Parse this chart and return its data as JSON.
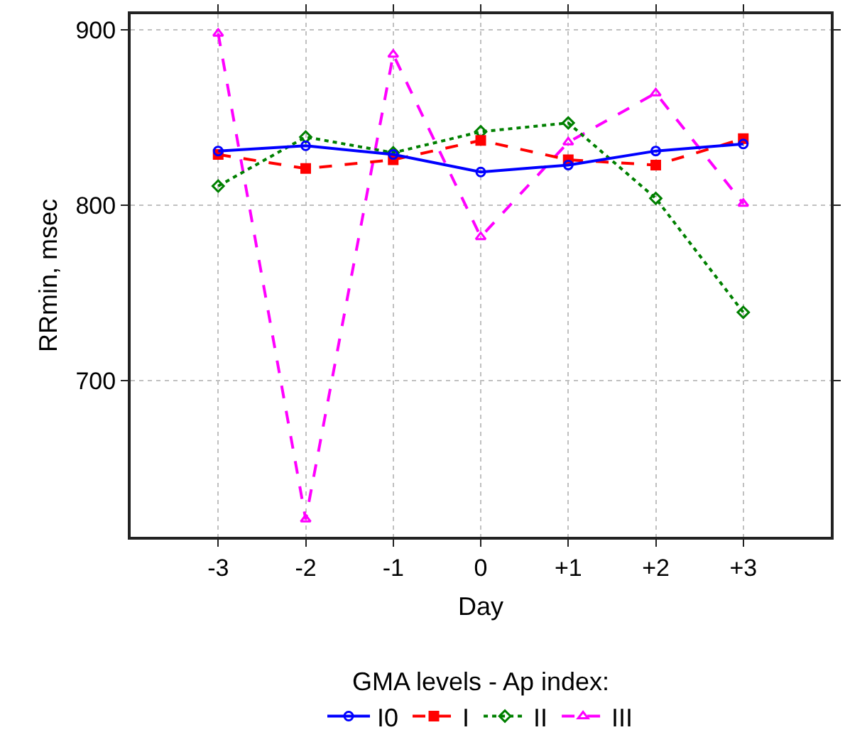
{
  "chart_data": {
    "type": "line",
    "xlabel": "Day",
    "ylabel": "RRmin, msec",
    "legend_title": "GMA levels - Ap index:",
    "x": [
      -3,
      -2,
      -1,
      0,
      1,
      2,
      3
    ],
    "xlim": [
      -4,
      4
    ],
    "xticks": [
      -3,
      -2,
      -1,
      0,
      {
        "value": 1,
        "label": "+1"
      },
      {
        "value": 2,
        "label": "+2"
      },
      {
        "value": 3,
        "label": "+3"
      }
    ],
    "ylim": [
      611,
      909
    ],
    "yticks": [
      700,
      800,
      900
    ],
    "grid": true,
    "legend": "bottom",
    "series": [
      {
        "name": "I0",
        "color": "#0000ff",
        "marker": "circle",
        "line_style": "solid",
        "values": [
          831,
          834,
          829,
          819,
          823,
          831,
          835
        ]
      },
      {
        "name": "I",
        "color": "#ff0000",
        "marker": "square",
        "line_style": "dashed",
        "values": [
          829,
          821,
          826,
          837,
          826,
          823,
          838
        ]
      },
      {
        "name": "II",
        "color": "#008000",
        "marker": "diamond",
        "line_style": "dotted",
        "values": [
          811,
          839,
          830,
          842,
          847,
          804,
          739
        ]
      },
      {
        "name": "III",
        "color": "#ff00ff",
        "marker": "triangle",
        "line_style": "dashed",
        "values": [
          898,
          621,
          886,
          782,
          836,
          864,
          801
        ]
      }
    ]
  }
}
